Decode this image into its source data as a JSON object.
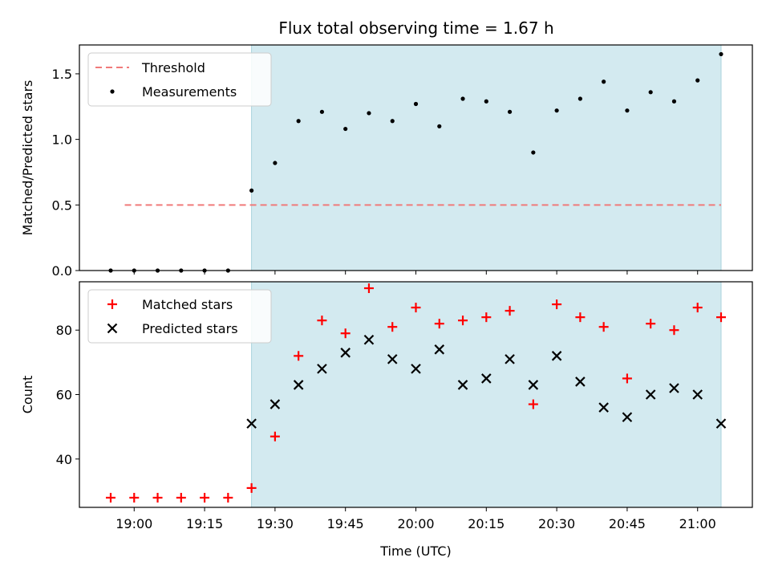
{
  "title": "Flux total observing time = 1.67 h",
  "colors": {
    "shade": "#d3eaf0",
    "shade_edge": "#a8d3dc",
    "threshold": "#f07a7a",
    "measurement": "#000000",
    "matched": "#ff0000",
    "predicted": "#000000"
  },
  "chart_data": [
    {
      "type": "scatter",
      "panel": "top",
      "ylabel": "Matched/Predicted stars",
      "xlabel": "",
      "ylim": [
        0,
        1.72
      ],
      "yticks": [
        0.0,
        0.5,
        1.0,
        1.5
      ],
      "ytick_labels": [
        "0.0",
        "0.5",
        "1.0",
        "1.5"
      ],
      "shaded_region": [
        "19:25",
        "21:05"
      ],
      "legend": {
        "position": "upper-left",
        "entries": [
          "Threshold",
          "Measurements"
        ]
      },
      "threshold": {
        "name": "Threshold",
        "value": 0.5,
        "x_range": [
          "18:58",
          "21:05"
        ],
        "style": "dashed"
      },
      "series": [
        {
          "name": "Measurements",
          "x": [
            "18:55",
            "19:00",
            "19:05",
            "19:10",
            "19:15",
            "19:20",
            "19:25",
            "19:30",
            "19:35",
            "19:40",
            "19:45",
            "19:50",
            "19:55",
            "20:00",
            "20:05",
            "20:10",
            "20:15",
            "20:20",
            "20:25",
            "20:30",
            "20:35",
            "20:40",
            "20:45",
            "20:50",
            "20:55",
            "21:00",
            "21:05"
          ],
          "y": [
            0.0,
            0.0,
            0.0,
            0.0,
            0.0,
            0.0,
            0.61,
            0.82,
            1.14,
            1.21,
            1.08,
            1.2,
            1.14,
            1.27,
            1.1,
            1.31,
            1.29,
            1.21,
            0.9,
            1.22,
            1.31,
            1.44,
            1.22,
            1.36,
            1.29,
            1.45,
            1.65
          ]
        }
      ]
    },
    {
      "type": "scatter",
      "panel": "bottom",
      "ylabel": "Count",
      "xlabel": "Time (UTC)",
      "ylim": [
        25,
        95
      ],
      "yticks": [
        40,
        60,
        80
      ],
      "ytick_labels": [
        "40",
        "60",
        "80"
      ],
      "xtick_labels": [
        "19:00",
        "19:15",
        "19:30",
        "19:45",
        "20:00",
        "20:15",
        "20:30",
        "20:45",
        "21:00"
      ],
      "shaded_region": [
        "19:25",
        "21:05"
      ],
      "legend": {
        "position": "upper-left",
        "entries": [
          "Matched stars",
          "Predicted stars"
        ]
      },
      "series": [
        {
          "name": "Matched stars",
          "marker": "plus",
          "x": [
            "18:55",
            "19:00",
            "19:05",
            "19:10",
            "19:15",
            "19:20",
            "19:25",
            "19:30",
            "19:35",
            "19:40",
            "19:45",
            "19:50",
            "19:55",
            "20:00",
            "20:05",
            "20:10",
            "20:15",
            "20:20",
            "20:25",
            "20:30",
            "20:35",
            "20:40",
            "20:45",
            "20:50",
            "20:55",
            "21:00",
            "21:05"
          ],
          "y": [
            28,
            28,
            28,
            28,
            28,
            28,
            31,
            47,
            72,
            83,
            79,
            93,
            81,
            87,
            82,
            83,
            84,
            86,
            57,
            88,
            84,
            81,
            65,
            82,
            80,
            87,
            84
          ]
        },
        {
          "name": "Predicted stars",
          "marker": "x",
          "x": [
            "19:25",
            "19:30",
            "19:35",
            "19:40",
            "19:45",
            "19:50",
            "19:55",
            "20:00",
            "20:05",
            "20:10",
            "20:15",
            "20:20",
            "20:25",
            "20:30",
            "20:35",
            "20:40",
            "20:45",
            "20:50",
            "20:55",
            "21:00",
            "21:05"
          ],
          "y": [
            51,
            57,
            63,
            68,
            73,
            77,
            71,
            68,
            74,
            63,
            65,
            71,
            63,
            72,
            64,
            56,
            53,
            60,
            62,
            60,
            51
          ]
        }
      ]
    }
  ]
}
